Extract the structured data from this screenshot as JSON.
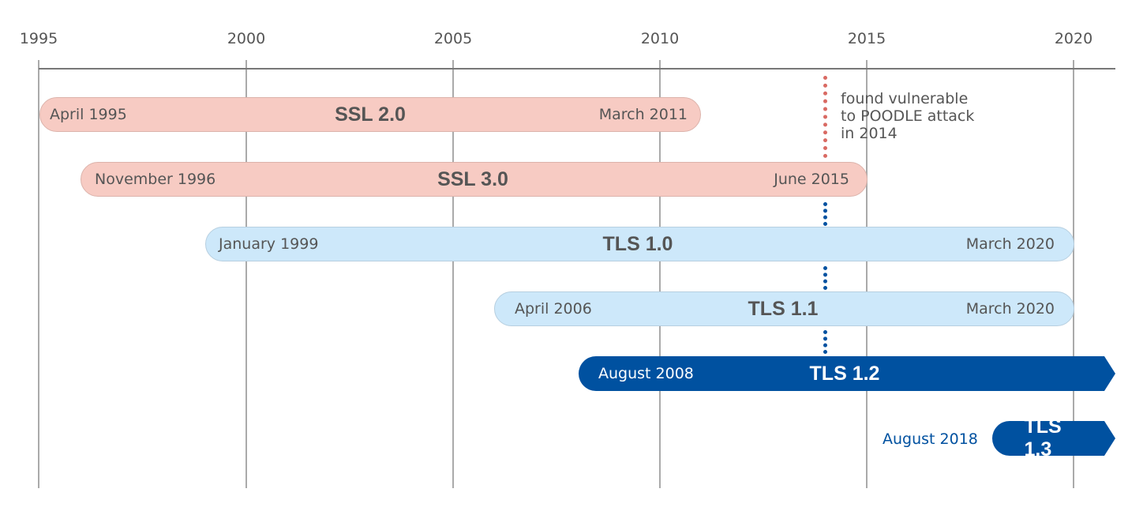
{
  "axis": {
    "ticks": [
      "1995",
      "2000",
      "2005",
      "2010",
      "2015",
      "2020"
    ]
  },
  "colors": {
    "ssl": "#f7cbc3",
    "tls_old": "#cde8fa",
    "tls_current": "#0051a0",
    "poodle_marker": "#d96a63"
  },
  "protocols": [
    {
      "name": "SSL 2.0",
      "start": "April 1995",
      "end": "March 2011"
    },
    {
      "name": "SSL 3.0",
      "start": "November 1996",
      "end": "June 2015"
    },
    {
      "name": "TLS 1.0",
      "start": "January 1999",
      "end": "March 2020"
    },
    {
      "name": "TLS 1.1",
      "start": "April 2006",
      "end": "March 2020"
    },
    {
      "name": "TLS 1.2",
      "start": "August 2008"
    },
    {
      "name": "TLS 1.3",
      "start": "August 2018"
    }
  ],
  "annotation": {
    "lines": [
      "found vulnerable",
      "to POODLE attack",
      "in 2014"
    ]
  }
}
